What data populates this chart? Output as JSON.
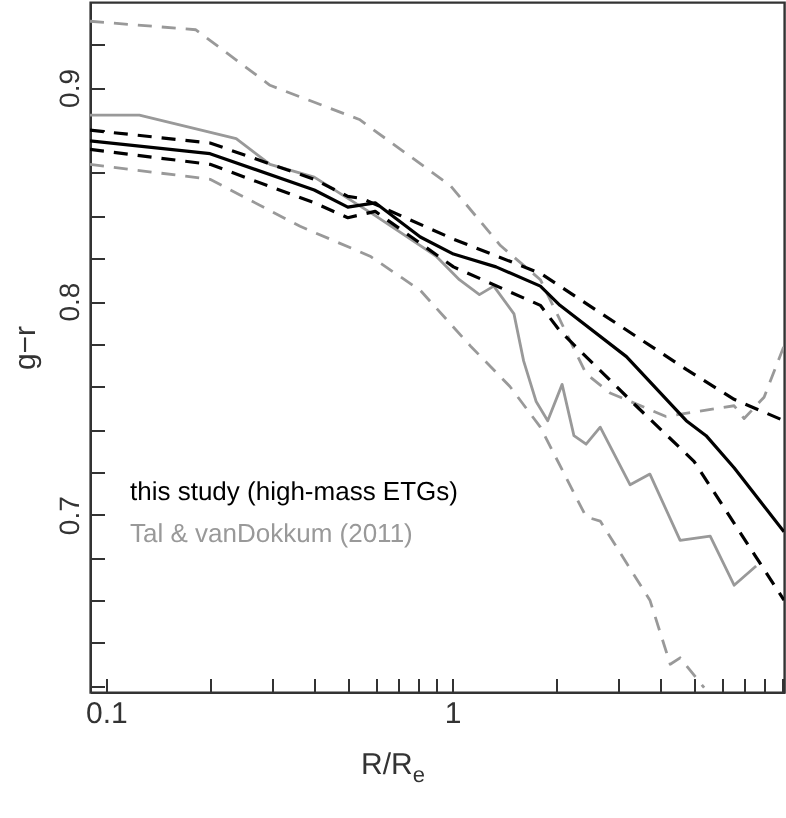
{
  "chart_data": {
    "type": "line",
    "xlabel": "R/R$_{e}$",
    "ylabel": "g−r",
    "log": "x",
    "xlim": [
      0.09,
      9.1
    ],
    "ylim": [
      0.617,
      0.94
    ],
    "xticks": [
      0.1,
      {
        "value": 0.2,
        "label": null
      },
      {
        "value": 0.3,
        "label": null
      },
      {
        "value": 0.4,
        "label": null
      },
      {
        "value": 0.5,
        "label": null
      },
      {
        "value": 0.6,
        "label": null
      },
      {
        "value": 0.7,
        "label": null
      },
      {
        "value": 0.8,
        "label": null
      },
      {
        "value": 0.9,
        "label": null
      },
      1,
      {
        "value": 2,
        "label": null
      },
      {
        "value": 3,
        "label": null
      },
      {
        "value": 4,
        "label": null
      },
      {
        "value": 5,
        "label": null
      },
      {
        "value": 6,
        "label": null
      },
      {
        "value": 7,
        "label": null
      },
      {
        "value": 8,
        "label": null
      },
      {
        "value": 9,
        "label": null
      }
    ],
    "yticks": [
      {
        "value": 0.62,
        "label": null
      },
      {
        "value": 0.64,
        "label": null
      },
      {
        "value": 0.66,
        "label": null
      },
      {
        "value": 0.68,
        "label": null
      },
      0.7,
      {
        "value": 0.72,
        "label": null
      },
      {
        "value": 0.74,
        "label": null
      },
      {
        "value": 0.76,
        "label": null
      },
      {
        "value": 0.78,
        "label": null
      },
      0.8,
      {
        "value": 0.82,
        "label": null
      },
      {
        "value": 0.84,
        "label": null
      },
      {
        "value": 0.86,
        "label": null
      },
      {
        "value": 0.88,
        "label": null
      },
      0.9,
      {
        "value": 0.92,
        "label": null
      }
    ],
    "grid": false,
    "legend": "bottom left",
    "series": [
      {
        "name": "Tal & vanDokkum (2011)",
        "color": "#999999",
        "line_style": "solid",
        "x": [
          0.09,
          0.125,
          0.238,
          0.298,
          0.4,
          0.6,
          0.9,
          1.05,
          1.2,
          1.32,
          1.51,
          1.61,
          1.75,
          1.89,
          2.08,
          2.25,
          2.44,
          2.68,
          3.27,
          3.73,
          4.56,
          5.57,
          6.53,
          7.56
        ],
        "values": [
          0.887,
          0.887,
          0.876,
          0.864,
          0.858,
          0.84,
          0.821,
          0.81,
          0.803,
          0.807,
          0.794,
          0.772,
          0.753,
          0.744,
          0.761,
          0.737,
          0.733,
          0.741,
          0.714,
          0.719,
          0.688,
          0.69,
          0.667,
          0.676
        ]
      },
      {
        "color": "#999999",
        "line_style": "dashed",
        "x": [
          0.09,
          0.182,
          0.298,
          0.54,
          0.99,
          1.38,
          1.8,
          2.14,
          2.44,
          2.86,
          4.15,
          6.53,
          6.98,
          7.97,
          9.1
        ],
        "values": [
          0.931,
          0.927,
          0.901,
          0.885,
          0.854,
          0.826,
          0.81,
          0.785,
          0.766,
          0.757,
          0.746,
          0.751,
          0.745,
          0.755,
          0.779
        ]
      },
      {
        "color": "#999999",
        "line_style": "dashed",
        "x": [
          0.09,
          0.2,
          0.364,
          0.58,
          0.81,
          1.13,
          1.47,
          1.8,
          2.44,
          2.68,
          3.73,
          4.27,
          4.56,
          5.35
        ],
        "values": [
          0.864,
          0.857,
          0.835,
          0.821,
          0.805,
          0.779,
          0.76,
          0.741,
          0.699,
          0.697,
          0.66,
          0.63,
          0.633,
          0.619
        ]
      },
      {
        "name": "this study (high-mass ETGs)",
        "color": "#000000",
        "line_style": "solid",
        "x": [
          0.09,
          0.2,
          0.4,
          0.5,
          0.6,
          0.81,
          1.01,
          1.34,
          1.8,
          2.05,
          3.19,
          4.75,
          5.42,
          6.53,
          9.1
        ],
        "values": [
          0.875,
          0.869,
          0.852,
          0.844,
          0.846,
          0.83,
          0.822,
          0.816,
          0.807,
          0.798,
          0.774,
          0.744,
          0.737,
          0.722,
          0.692
        ]
      },
      {
        "color": "#000000",
        "line_style": "dashed",
        "x": [
          0.09,
          0.2,
          0.4,
          0.5,
          0.55,
          1.01,
          1.8,
          4.75,
          6.53,
          9.1
        ],
        "values": [
          0.88,
          0.874,
          0.857,
          0.849,
          0.848,
          0.829,
          0.813,
          0.768,
          0.754,
          0.744
        ]
      },
      {
        "color": "#000000",
        "line_style": "dashed",
        "x": [
          0.09,
          0.2,
          0.4,
          0.5,
          0.6,
          1.01,
          1.8,
          2.05,
          3.4,
          5.0,
          7.5,
          9.1
        ],
        "values": [
          0.871,
          0.864,
          0.846,
          0.839,
          0.842,
          0.816,
          0.798,
          0.786,
          0.751,
          0.725,
          0.681,
          0.66
        ]
      }
    ]
  }
}
